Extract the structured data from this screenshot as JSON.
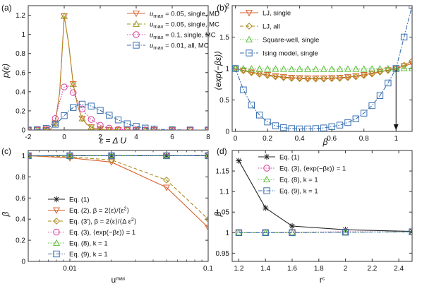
{
  "chart_data": [
    {
      "panel": "(a)",
      "type": "line",
      "xlabel": "ε = Δ U",
      "ylabel": "p(ε)",
      "xlim": [
        -2,
        8
      ],
      "ylim": [
        0,
        1.3
      ],
      "xticks": [
        "-2",
        "0",
        "2",
        "4",
        "6",
        "8"
      ],
      "yticks": [
        "0",
        "0.2",
        "0.4",
        "0.6",
        "0.8",
        "1",
        "1.2"
      ],
      "xtick_values": [
        -2,
        0,
        2,
        4,
        6,
        8
      ],
      "ytick_values": [
        0,
        0.2,
        0.4,
        0.6,
        0.8,
        1,
        1.2
      ],
      "legend_position": "top-right",
      "series": [
        {
          "name": "u_max = 0.05, single, MD",
          "name_parts": [
            "u",
            "max",
            " = 0.05, single, MD"
          ],
          "color": "#d9622f",
          "marker": "triangle-down",
          "dash": "solid",
          "x": [
            -2,
            -1.75,
            -1.5,
            -1.25,
            -1,
            -0.75,
            -0.5,
            -0.25,
            0,
            0.25,
            0.5,
            0.75,
            1,
            1.25,
            1.5,
            1.75,
            2,
            2.25,
            2.5,
            2.75,
            3,
            3.25,
            3.5,
            3.75,
            4,
            4.25,
            4.5,
            4.75,
            5,
            5.5,
            6,
            6.5,
            7,
            7.5,
            8
          ],
          "y": [
            0,
            0,
            0,
            0,
            0.001,
            0.01,
            0.07,
            0.4,
            1.19,
            0.9,
            0.48,
            0.25,
            0.12,
            0.06,
            0.03,
            0.015,
            0.008,
            0.004,
            0.002,
            0.001,
            0,
            0,
            0,
            0,
            0,
            0,
            0,
            0,
            0,
            0,
            0,
            0,
            0,
            0,
            0
          ]
        },
        {
          "name": "u_max = 0.05, single, MC",
          "name_parts": [
            "u",
            "max",
            " = 0.05, single, MC"
          ],
          "color": "#9a9a1e",
          "marker": "triangle-up",
          "dash": "dashed",
          "x": [
            -2,
            -1.75,
            -1.5,
            -1.25,
            -1,
            -0.75,
            -0.5,
            -0.25,
            0,
            0.25,
            0.5,
            0.75,
            1,
            1.25,
            1.5,
            1.75,
            2,
            2.25,
            2.5,
            2.75,
            3,
            3.25,
            3.5,
            3.75,
            4,
            4.25,
            4.5,
            4.75,
            5,
            5.5,
            6,
            6.5,
            7,
            7.5,
            8
          ],
          "y": [
            0,
            0,
            0,
            0,
            0.001,
            0.01,
            0.07,
            0.4,
            1.19,
            0.9,
            0.48,
            0.25,
            0.12,
            0.06,
            0.03,
            0.015,
            0.008,
            0.004,
            0.002,
            0.001,
            0,
            0,
            0,
            0,
            0,
            0,
            0,
            0,
            0,
            0,
            0,
            0,
            0,
            0,
            0
          ]
        },
        {
          "name": "u_max = 0.1, single, MC",
          "name_parts": [
            "u",
            "max",
            " = 0.1, single, MC"
          ],
          "color": "#d63b9a",
          "marker": "circle",
          "dash": "dotted",
          "x": [
            -2,
            -1.75,
            -1.5,
            -1.25,
            -1,
            -0.75,
            -0.5,
            -0.25,
            0,
            0.25,
            0.5,
            0.75,
            1,
            1.25,
            1.5,
            1.75,
            2,
            2.25,
            2.5,
            2.75,
            3,
            3.25,
            3.5,
            3.75,
            4,
            4.25,
            4.5,
            4.75,
            5,
            5.5,
            6,
            6.5,
            7,
            7.5,
            8
          ],
          "y": [
            0,
            0,
            0.001,
            0.003,
            0.01,
            0.04,
            0.12,
            0.3,
            0.45,
            0.46,
            0.39,
            0.3,
            0.22,
            0.16,
            0.11,
            0.08,
            0.05,
            0.03,
            0.02,
            0.012,
            0.007,
            0.004,
            0.002,
            0.001,
            0,
            0,
            0,
            0,
            0,
            0,
            0,
            0,
            0,
            0,
            0
          ]
        },
        {
          "name": "u_max = 0.01, all, MC",
          "name_parts": [
            "u",
            "max",
            " = 0.01, all, MC"
          ],
          "color": "#3a6fb0",
          "marker": "square",
          "dash": "dashdot",
          "x": [
            -2,
            -1.75,
            -1.5,
            -1.25,
            -1,
            -0.75,
            -0.5,
            -0.25,
            0,
            0.25,
            0.5,
            0.75,
            1,
            1.25,
            1.5,
            1.75,
            2,
            2.25,
            2.5,
            2.75,
            3,
            3.25,
            3.5,
            3.75,
            4,
            4.25,
            4.5,
            4.75,
            5,
            5.5,
            6,
            6.5,
            7,
            7.5,
            8
          ],
          "y": [
            0,
            0.001,
            0.003,
            0.008,
            0.018,
            0.035,
            0.06,
            0.1,
            0.15,
            0.2,
            0.235,
            0.26,
            0.27,
            0.265,
            0.25,
            0.23,
            0.205,
            0.18,
            0.155,
            0.13,
            0.105,
            0.085,
            0.065,
            0.05,
            0.038,
            0.028,
            0.02,
            0.014,
            0.01,
            0.005,
            0.002,
            0.001,
            0,
            0,
            0
          ]
        }
      ]
    },
    {
      "panel": "(b)",
      "type": "line",
      "xlabel": "β",
      "ylabel": "⟨exp(−βε)⟩",
      "xlim": [
        -0.02,
        1.1
      ],
      "ylim": [
        0,
        2
      ],
      "xticks": [
        "0",
        "0.2",
        "0.4",
        "0.6",
        "0.8",
        "1"
      ],
      "yticks": [
        "0",
        "0.5",
        "1",
        "1.5",
        "2"
      ],
      "xtick_values": [
        0,
        0.2,
        0.4,
        0.6,
        0.8,
        1
      ],
      "ytick_values": [
        0,
        0.5,
        1,
        1.5,
        2
      ],
      "legend_position": "top-left",
      "annotation": {
        "type": "vertical-arrow",
        "x": 1,
        "from_y": 1,
        "to_y": 0
      },
      "series": [
        {
          "name": "LJ, single",
          "color": "#d9622f",
          "marker": "triangle-down",
          "dash": "solid",
          "x": [
            0,
            0.05,
            0.1,
            0.15,
            0.2,
            0.25,
            0.3,
            0.35,
            0.4,
            0.45,
            0.5,
            0.55,
            0.6,
            0.65,
            0.7,
            0.75,
            0.8,
            0.85,
            0.9,
            0.95,
            1,
            1.05,
            1.1
          ],
          "y": [
            1,
            0.97,
            0.94,
            0.92,
            0.9,
            0.88,
            0.865,
            0.855,
            0.85,
            0.845,
            0.845,
            0.845,
            0.85,
            0.855,
            0.865,
            0.88,
            0.9,
            0.925,
            0.95,
            0.975,
            1,
            1.04,
            1.08
          ]
        },
        {
          "name": "LJ, all",
          "color": "#a88a1a",
          "marker": "diamond",
          "dash": "dashed",
          "x": [
            0,
            0.05,
            0.1,
            0.15,
            0.2,
            0.25,
            0.3,
            0.35,
            0.4,
            0.45,
            0.5,
            0.55,
            0.6,
            0.65,
            0.7,
            0.75,
            0.8,
            0.85,
            0.9,
            0.95,
            1,
            1.05,
            1.1
          ],
          "y": [
            1,
            0.965,
            0.935,
            0.91,
            0.89,
            0.87,
            0.855,
            0.845,
            0.84,
            0.835,
            0.835,
            0.835,
            0.84,
            0.845,
            0.855,
            0.87,
            0.89,
            0.915,
            0.945,
            0.97,
            1,
            1.05,
            1.12
          ]
        },
        {
          "name": "Square-well, single",
          "color": "#5cbf3a",
          "marker": "triangle-up",
          "dash": "dotted",
          "x": [
            0,
            0.05,
            0.1,
            0.15,
            0.2,
            0.25,
            0.3,
            0.35,
            0.4,
            0.45,
            0.5,
            0.55,
            0.6,
            0.65,
            0.7,
            0.75,
            0.8,
            0.85,
            0.9,
            0.95,
            1,
            1.05,
            1.1
          ],
          "y": [
            1,
            0.998,
            0.996,
            0.994,
            0.993,
            0.992,
            0.991,
            0.99,
            0.99,
            0.99,
            0.99,
            0.99,
            0.99,
            0.99,
            0.991,
            0.992,
            0.993,
            0.994,
            0.996,
            0.998,
            1,
            1.002,
            1.004
          ]
        },
        {
          "name": "Ising model, single",
          "color": "#3a6fb0",
          "marker": "square",
          "dash": "dashdot",
          "x": [
            0,
            0.05,
            0.1,
            0.15,
            0.2,
            0.25,
            0.3,
            0.35,
            0.4,
            0.45,
            0.5,
            0.55,
            0.6,
            0.65,
            0.7,
            0.75,
            0.8,
            0.85,
            0.9,
            0.95,
            1,
            1.05,
            1.1
          ],
          "y": [
            1,
            0.66,
            0.42,
            0.26,
            0.15,
            0.09,
            0.06,
            0.045,
            0.04,
            0.04,
            0.045,
            0.055,
            0.075,
            0.1,
            0.14,
            0.2,
            0.29,
            0.41,
            0.57,
            0.77,
            1,
            1.5,
            2
          ]
        }
      ]
    },
    {
      "panel": "(c)",
      "type": "line",
      "xscale": "log",
      "xlabel": "u_max",
      "xlabel_parts": [
        "u",
        "max"
      ],
      "ylabel": "β",
      "xlim": [
        0.005,
        0.1
      ],
      "ylim": [
        0,
        1.05
      ],
      "xticks": [
        "0.01",
        "0.1"
      ],
      "yticks": [
        "0",
        "0.2",
        "0.4",
        "0.6",
        "0.8",
        "1"
      ],
      "xtick_values": [
        0.01,
        0.1
      ],
      "ytick_values": [
        0,
        0.2,
        0.4,
        0.6,
        0.8,
        1
      ],
      "x_minor_ticks": [
        0.006,
        0.007,
        0.008,
        0.009,
        0.02,
        0.03,
        0.04,
        0.05,
        0.06,
        0.07,
        0.08,
        0.09
      ],
      "legend_position": "bottom-left",
      "series": [
        {
          "name": "Eq. (1)",
          "name_parts": [
            "Eq. (1)"
          ],
          "color": "#222222",
          "marker": "asterisk",
          "dash": "solid",
          "x": [
            0.005,
            0.01,
            0.02,
            0.05,
            0.1
          ],
          "y": [
            1,
            1,
            1,
            1,
            1
          ]
        },
        {
          "name": "Eq. (2), β = 2⟨ε⟩/⟨ε²⟩",
          "name_parts": [
            "Eq. (2), β = 2⟨ε⟩/⟨ε",
            "2",
            "⟩"
          ],
          "color": "#d9622f",
          "marker": "triangle-down",
          "dash": "solid",
          "x": [
            0.005,
            0.01,
            0.02,
            0.05,
            0.1
          ],
          "y": [
            1,
            0.98,
            0.94,
            0.7,
            0.32
          ]
        },
        {
          "name": "Eq. (3′), β = 2⟨ε⟩/⟨Δ ε²⟩",
          "name_parts": [
            "Eq. (3′), β = 2⟨ε⟩/⟨Δ ε",
            "2",
            "⟩"
          ],
          "color": "#a88a1a",
          "marker": "diamond",
          "dash": "dashed",
          "x": [
            0.005,
            0.01,
            0.02,
            0.05,
            0.1
          ],
          "y": [
            1,
            0.99,
            0.96,
            0.77,
            0.4
          ]
        },
        {
          "name": "Eq. (3), ⟨exp(−βε)⟩ = 1",
          "name_parts": [
            "Eq. (3), ⟨exp(−βε)⟩ = 1"
          ],
          "color": "#d63b9a",
          "marker": "circle",
          "dash": "dotted",
          "x": [
            0.005,
            0.01,
            0.02,
            0.05,
            0.1
          ],
          "y": [
            1,
            1,
            1,
            1,
            1.005
          ]
        },
        {
          "name": "Eq. (8), k = 1",
          "name_parts": [
            "Eq. (8), k = 1"
          ],
          "color": "#5cbf3a",
          "marker": "triangle-up",
          "dash": "dotted",
          "x": [
            0.005,
            0.01,
            0.02,
            0.05,
            0.1
          ],
          "y": [
            1,
            1,
            1,
            1,
            1
          ]
        },
        {
          "name": "Eq. (9), k = 1",
          "name_parts": [
            "Eq. (9), k = 1"
          ],
          "color": "#3a6fb0",
          "marker": "square",
          "dash": "dashdot",
          "x": [
            0.005,
            0.01,
            0.02,
            0.05,
            0.1
          ],
          "y": [
            1,
            1,
            1,
            1,
            1
          ]
        }
      ]
    },
    {
      "panel": "(d)",
      "type": "line",
      "xlabel": "r_c",
      "xlabel_parts": [
        "r",
        "c"
      ],
      "ylabel": "β",
      "xlim": [
        1.15,
        2.5
      ],
      "ylim": [
        0.93,
        1.2
      ],
      "xticks": [
        "1.2",
        "1.4",
        "1.6",
        "1.8",
        "2",
        "2.2",
        "2.4"
      ],
      "yticks": [
        "0.95",
        "1",
        "1.05",
        "1.1",
        "1.15"
      ],
      "xtick_values": [
        1.2,
        1.4,
        1.6,
        1.8,
        2,
        2.2,
        2.4
      ],
      "ytick_values": [
        0.95,
        1,
        1.05,
        1.1,
        1.15
      ],
      "legend_position": "top-center",
      "series": [
        {
          "name": "Eq. (1)",
          "name_parts": [
            "Eq. (1)"
          ],
          "color": "#222222",
          "marker": "asterisk",
          "dash": "solid",
          "x": [
            1.2,
            1.4,
            1.6,
            2,
            2.5
          ],
          "y": [
            1.175,
            1.06,
            1.016,
            1.007,
            1.003
          ]
        },
        {
          "name": "Eq. (3), ⟨exp(−βε)⟩ = 1",
          "name_parts": [
            "Eq. (3), ⟨exp(−βε)⟩ = 1"
          ],
          "color": "#d63b9a",
          "marker": "circle",
          "dash": "dotted",
          "x": [
            1.2,
            1.4,
            1.6,
            2,
            2.5
          ],
          "y": [
            1,
            1,
            1.001,
            1.002,
            1.002
          ]
        },
        {
          "name": "Eq. (8), k = 1",
          "name_parts": [
            "Eq. (8), k = 1"
          ],
          "color": "#5cbf3a",
          "marker": "triangle-up",
          "dash": "dotted",
          "x": [
            1.2,
            1.4,
            1.6,
            2,
            2.5
          ],
          "y": [
            1,
            1,
            1,
            1.001,
            1.002
          ]
        },
        {
          "name": "Eq. (9), k = 1",
          "name_parts": [
            "Eq. (9), k = 1"
          ],
          "color": "#3a6fb0",
          "marker": "square",
          "dash": "dashdot",
          "x": [
            1.2,
            1.4,
            1.6,
            2,
            2.5
          ],
          "y": [
            1,
            1,
            1,
            1.001,
            1.002
          ]
        }
      ]
    }
  ]
}
